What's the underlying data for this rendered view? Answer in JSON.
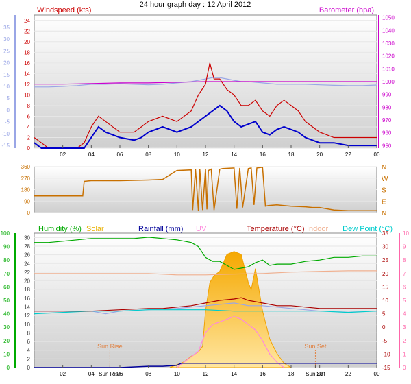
{
  "title": "24 hour graph day : 12 April 2012",
  "colors": {
    "wind_speed": "#cc0000",
    "wind_avg": "#0000cc",
    "barometer": "#cc00cc",
    "temp_axis_blue": "#9aa6e6",
    "direction": "#c87000",
    "humidity": "#00aa00",
    "solar": "#e8b000",
    "rainfall": "#000099",
    "uv": "#ff88dd",
    "temperature": "#aa0000",
    "indoor": "#f0b090",
    "dew_point": "#00cccc",
    "right_axis_pink": "#ff66aa",
    "sun_marker": "#e08040"
  },
  "chart_data": [
    {
      "type": "line",
      "panel": "wind",
      "labels": {
        "left": "Windspeed (kts)",
        "right": "Barometer (hpa)"
      },
      "x_ticks": [
        "02",
        "04",
        "06",
        "08",
        "10",
        "12",
        "14",
        "16",
        "18",
        "20",
        "22",
        "00"
      ],
      "y_left_outer_ticks": [
        "35",
        "30",
        "25",
        "20",
        "15",
        "10",
        "5",
        "0",
        "-5",
        "-10",
        "-15"
      ],
      "y_left_inner_ticks": [
        "0",
        "2",
        "4",
        "6",
        "8",
        "10",
        "12",
        "14",
        "16",
        "18",
        "20",
        "22",
        "24"
      ],
      "y_right_ticks": [
        "950",
        "960",
        "970",
        "980",
        "990",
        "1000",
        "1010",
        "1020",
        "1030",
        "1040",
        "1050"
      ],
      "xlim": [
        0,
        24
      ],
      "ylim_windspeed": [
        0,
        25
      ],
      "ylim_barometer": [
        948,
        1052
      ],
      "series": [
        {
          "key": "wind_gust",
          "x": [
            0,
            0.5,
            1,
            2,
            3,
            3.5,
            4,
            4.5,
            5,
            6,
            7,
            7.5,
            8,
            9,
            10,
            11,
            11.5,
            12,
            12.3,
            12.6,
            13,
            13.5,
            14,
            14.5,
            15,
            15.5,
            16,
            16.5,
            17,
            17.5,
            18,
            18.5,
            19,
            19.5,
            20,
            21,
            22,
            23,
            24
          ],
          "y": [
            2,
            1,
            0,
            0,
            0,
            1,
            4,
            6,
            5,
            3,
            3,
            4,
            5,
            6,
            5,
            7,
            10,
            12,
            16,
            13,
            13,
            11,
            10,
            8,
            8,
            9,
            7,
            6,
            8,
            9,
            8,
            7,
            5,
            4,
            3,
            2,
            2,
            2,
            2
          ]
        },
        {
          "key": "wind_avg",
          "x": [
            0,
            0.5,
            1,
            2,
            3,
            3.5,
            4,
            4.5,
            5,
            6,
            7,
            7.5,
            8,
            9,
            10,
            11,
            11.5,
            12,
            12.5,
            13,
            13.5,
            14,
            14.5,
            15,
            15.5,
            16,
            16.5,
            17,
            17.5,
            18,
            18.5,
            19,
            19.5,
            20,
            21,
            22,
            23,
            24
          ],
          "y": [
            1,
            0,
            0,
            0,
            0,
            0,
            2,
            4,
            3,
            2,
            1.5,
            2,
            3,
            4,
            3,
            4,
            5,
            6,
            7,
            8,
            7,
            5,
            4,
            4.5,
            5,
            3,
            2.5,
            3.5,
            4,
            3.5,
            3,
            2,
            1.5,
            1,
            1,
            0.5,
            0.5,
            0.5
          ]
        },
        {
          "key": "barometer",
          "x": [
            0,
            2,
            4,
            6,
            8,
            10,
            12,
            14,
            16,
            18,
            20,
            22,
            24
          ],
          "y": [
            998,
            998,
            998.5,
            999,
            999,
            999.5,
            1000,
            1000,
            1000,
            1000,
            1000,
            1000,
            1000
          ]
        },
        {
          "key": "temperature_blue",
          "x": [
            0,
            1,
            2,
            3,
            4,
            5,
            6,
            7,
            8,
            9,
            10,
            11,
            12,
            12.5,
            13,
            13.5,
            14,
            14.5,
            15,
            16,
            17,
            18,
            19,
            20,
            21,
            22,
            23,
            24
          ],
          "y": [
            8,
            8,
            8.2,
            8.5,
            9,
            9,
            9.2,
            9,
            8.8,
            9,
            9.5,
            10,
            11,
            11.5,
            11.5,
            11,
            10.5,
            10,
            10,
            9.5,
            9,
            9,
            9,
            8.8,
            8.6,
            8.5,
            8.5,
            8.7
          ]
        }
      ]
    },
    {
      "type": "line",
      "panel": "direction",
      "y_ticks": [
        "360",
        "270",
        "180",
        "90",
        "0"
      ],
      "compass_ticks": [
        "N",
        "W",
        "S",
        "E",
        "N"
      ],
      "ylim": [
        0,
        360
      ],
      "xlim": [
        0,
        24
      ],
      "series": [
        {
          "key": "direction",
          "x": [
            0,
            3.4,
            3.5,
            4,
            6,
            8,
            9,
            10,
            11,
            11.1,
            11.3,
            11.5,
            11.6,
            11.8,
            12,
            12.1,
            12.2,
            12.4,
            12.6,
            13,
            13.2,
            14,
            14.2,
            14.4,
            14.6,
            15,
            15.2,
            15.4,
            15.6,
            16,
            16.2,
            16.4,
            17,
            18,
            19,
            19.5,
            20,
            21,
            22,
            23,
            24
          ],
          "y": [
            130,
            130,
            245,
            250,
            250,
            255,
            260,
            330,
            335,
            20,
            340,
            15,
            340,
            20,
            340,
            25,
            330,
            340,
            20,
            340,
            345,
            350,
            30,
            350,
            40,
            345,
            350,
            60,
            350,
            355,
            50,
            55,
            60,
            50,
            45,
            40,
            40,
            20,
            15,
            15,
            15
          ]
        }
      ]
    },
    {
      "type": "line",
      "panel": "weather",
      "labels": {
        "humidity": "Humidity (%)",
        "solar": "Solar",
        "rainfall": "Rainfall (mm)",
        "uv": "UV",
        "temperature": "Temperature (°C)",
        "indoor": "Indoor",
        "dew_point": "Dew Point (°C)",
        "sun_rise": "Sun Rise",
        "sun_set": "Sun Set"
      },
      "x_ticks": [
        "02",
        "04",
        "Sun Rise",
        "06",
        "08",
        "10",
        "12",
        "14",
        "16",
        "18",
        "Sun Set",
        "20",
        "22",
        "00"
      ],
      "y_humidity_ticks": [
        "100",
        "90",
        "80",
        "70",
        "60",
        "50",
        "40",
        "30",
        "20",
        "10",
        "0"
      ],
      "y_rain_ticks": [
        "30",
        "28",
        "26",
        "24",
        "22",
        "20",
        "18",
        "16",
        "14",
        "12",
        "10",
        "8",
        "6",
        "4",
        "2",
        "0"
      ],
      "y_temp_ticks": [
        "35",
        "30",
        "25",
        "20",
        "15",
        "10",
        "5",
        "0",
        "-5",
        "-10",
        "-15"
      ],
      "y_pink_ticks": [
        "10",
        "9",
        "8",
        "7",
        "6",
        "5",
        "4",
        "3",
        "2",
        "1",
        "0"
      ],
      "xlim": [
        0,
        24
      ],
      "ylim_humidity": [
        0,
        100
      ],
      "ylim_temperature": [
        -15,
        35
      ],
      "sun_rise_hour": 5.3,
      "sun_set_hour": 19.7,
      "series": [
        {
          "key": "humidity",
          "x": [
            0,
            1,
            2,
            3,
            4,
            5,
            6,
            7,
            8,
            9,
            10,
            11,
            11.5,
            12,
            12.5,
            13,
            13.5,
            14,
            14.5,
            15,
            15.5,
            16,
            16.5,
            17,
            18,
            19,
            20,
            21,
            22,
            23,
            24
          ],
          "y": [
            93,
            93,
            94,
            95,
            96,
            96,
            96,
            96,
            97,
            96,
            95,
            93,
            90,
            82,
            79,
            79,
            76,
            73,
            74,
            75,
            78,
            80,
            76,
            77,
            77,
            79,
            80,
            82,
            82,
            83,
            83
          ]
        },
        {
          "key": "indoor",
          "x": [
            0,
            4,
            8,
            10,
            12,
            14,
            16,
            18,
            20,
            22,
            24
          ],
          "y": [
            20,
            20,
            20,
            19.5,
            19.5,
            19.8,
            20,
            20.5,
            20.8,
            21,
            21
          ]
        },
        {
          "key": "temperature",
          "x": [
            0,
            2,
            4,
            6,
            8,
            9,
            10,
            11,
            12,
            13,
            14,
            14.5,
            15,
            16,
            17,
            18,
            19,
            20,
            21,
            22,
            23,
            24
          ],
          "y": [
            6,
            6,
            6,
            6.5,
            7,
            7,
            7.5,
            8,
            9,
            10,
            10.5,
            11,
            10,
            9,
            8,
            8,
            7.5,
            7,
            7,
            7,
            7,
            7
          ]
        },
        {
          "key": "dew_point",
          "x": [
            0,
            2,
            4,
            6,
            8,
            10,
            12,
            14,
            16,
            18,
            20,
            22,
            24
          ],
          "y": [
            5,
            5.5,
            6,
            6,
            6.5,
            6.5,
            6.5,
            6,
            6,
            6,
            6,
            5.5,
            6
          ]
        },
        {
          "key": "temp_blue",
          "x": [
            0,
            2,
            4,
            5,
            6,
            8,
            10,
            11,
            12,
            13,
            14,
            15,
            16,
            17,
            18,
            19,
            20,
            22,
            24
          ],
          "y": [
            6,
            6,
            6,
            5,
            6,
            6.5,
            7,
            7.5,
            8,
            8.5,
            9,
            8,
            8,
            7.5,
            7,
            6.5,
            6,
            6,
            6
          ]
        },
        {
          "key": "solar",
          "x": [
            9.5,
            10,
            10.5,
            11,
            11.5,
            11.8,
            12,
            12.3,
            12.6,
            13,
            13.5,
            14,
            14.5,
            15,
            15.2,
            15.5,
            16,
            16.5,
            17,
            17.5,
            18
          ],
          "y": [
            0,
            2,
            4,
            8,
            11,
            15,
            40,
            60,
            65,
            68,
            80,
            82,
            80,
            60,
            55,
            70,
            40,
            20,
            10,
            3,
            0
          ]
        },
        {
          "key": "uv",
          "x": [
            10,
            10.5,
            11,
            11.5,
            12,
            12.5,
            13,
            13.5,
            14,
            14.5,
            15,
            15.5,
            16,
            16.5,
            17,
            17.5
          ],
          "y": [
            0,
            0.4,
            0.8,
            1.2,
            2.6,
            3.2,
            3.4,
            3.6,
            3.8,
            3.6,
            3.2,
            2.8,
            2,
            1,
            0.4,
            0
          ]
        },
        {
          "key": "rainfall",
          "x": [
            0,
            6,
            8,
            9,
            10,
            10.3,
            24
          ],
          "y": [
            0,
            0,
            0.3,
            0.3,
            0.5,
            1,
            1
          ]
        }
      ]
    }
  ]
}
